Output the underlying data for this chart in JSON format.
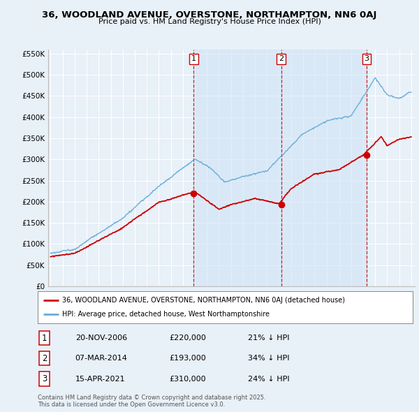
{
  "title": "36, WOODLAND AVENUE, OVERSTONE, NORTHAMPTON, NN6 0AJ",
  "subtitle": "Price paid vs. HM Land Registry's House Price Index (HPI)",
  "legend_label_red": "36, WOODLAND AVENUE, OVERSTONE, NORTHAMPTON, NN6 0AJ (detached house)",
  "legend_label_blue": "HPI: Average price, detached house, West Northamptonshire",
  "sale_markers": [
    {
      "num": 1,
      "date": "20-NOV-2006",
      "price": 220000,
      "pct": "21%",
      "x_year": 2006.9
    },
    {
      "num": 2,
      "date": "07-MAR-2014",
      "price": 193000,
      "pct": "34%",
      "x_year": 2014.18
    },
    {
      "num": 3,
      "date": "15-APR-2021",
      "price": 310000,
      "pct": "24%",
      "x_year": 2021.29
    }
  ],
  "sale_red_values": [
    220000,
    193000,
    310000
  ],
  "footer_line1": "Contains HM Land Registry data © Crown copyright and database right 2025.",
  "footer_line2": "This data is licensed under the Open Government Licence v3.0.",
  "ylim": [
    0,
    560000
  ],
  "xlim": [
    1994.8,
    2025.3
  ],
  "background_color": "#e8f0f8",
  "plot_bg_color": "#e8f0f8",
  "shade_color": "#d0e4f5",
  "red_color": "#cc0000",
  "blue_color": "#6aaed6",
  "grid_color": "#ffffff"
}
